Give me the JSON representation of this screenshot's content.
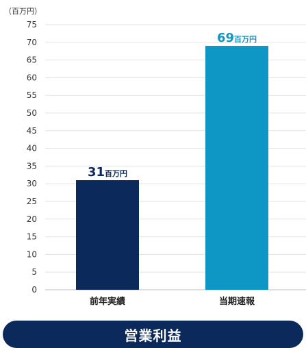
{
  "chart_data": {
    "type": "bar",
    "unit": "（百万円）",
    "categories": [
      "前年実績",
      "当期速報"
    ],
    "values": [
      31,
      69
    ],
    "value_unit": "百万円",
    "bar_colors": [
      "#0b2a5b",
      "#0e97c4"
    ],
    "label_colors": [
      "#0b2a5b",
      "#0e97c4"
    ],
    "ylim": [
      0,
      75
    ],
    "yticks": [
      0,
      5,
      10,
      15,
      20,
      25,
      30,
      35,
      40,
      45,
      50,
      55,
      60,
      65,
      70,
      75
    ],
    "grid": true,
    "title": "営業利益"
  },
  "colors": {
    "footer_background": "#0b2a5b",
    "footer_text": "#ffffff"
  }
}
